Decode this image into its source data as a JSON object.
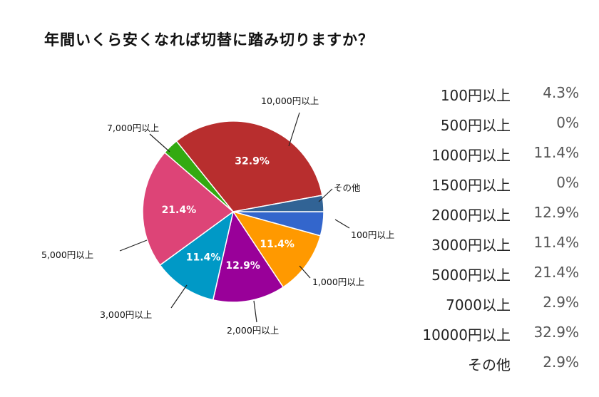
{
  "title": "年間いくら安くなれば切替に踏み切りますか？",
  "chart_data": {
    "type": "pie",
    "slices": [
      {
        "label": "100円以上",
        "value": 4.3,
        "color": "#3366cc",
        "inside": ""
      },
      {
        "label": "1,000円以上",
        "value": 11.4,
        "color": "#ff9900",
        "inside": "11.4%"
      },
      {
        "label": "2,000円以上",
        "value": 12.9,
        "color": "#990099",
        "inside": "12.9%"
      },
      {
        "label": "3,000円以上",
        "value": 11.4,
        "color": "#0099c6",
        "inside": "11.4%"
      },
      {
        "label": "5,000円以上",
        "value": 21.4,
        "color": "#dd4477",
        "inside": "21.4%"
      },
      {
        "label": "7,000円以上",
        "value": 2.9,
        "color": "#33aa11",
        "inside": ""
      },
      {
        "label": "10,000円以上",
        "value": 32.9,
        "color": "#b82e2e",
        "inside": "32.9%"
      },
      {
        "label": "その他",
        "value": 2.9,
        "color": "#316395",
        "inside": ""
      }
    ]
  },
  "table": [
    {
      "label": "100円以上",
      "pct": "4.3%"
    },
    {
      "label": "500円以上",
      "pct": "0%"
    },
    {
      "label": "1000円以上",
      "pct": "11.4%"
    },
    {
      "label": "1500円以上",
      "pct": "0%"
    },
    {
      "label": "2000円以上",
      "pct": "12.9%"
    },
    {
      "label": "3000円以上",
      "pct": "11.4%"
    },
    {
      "label": "5000円以上",
      "pct": "21.4%"
    },
    {
      "label": "7000以上",
      "pct": "2.9%"
    },
    {
      "label": "10000円以上",
      "pct": "32.9%"
    },
    {
      "label": "その他",
      "pct": "2.9%"
    }
  ]
}
